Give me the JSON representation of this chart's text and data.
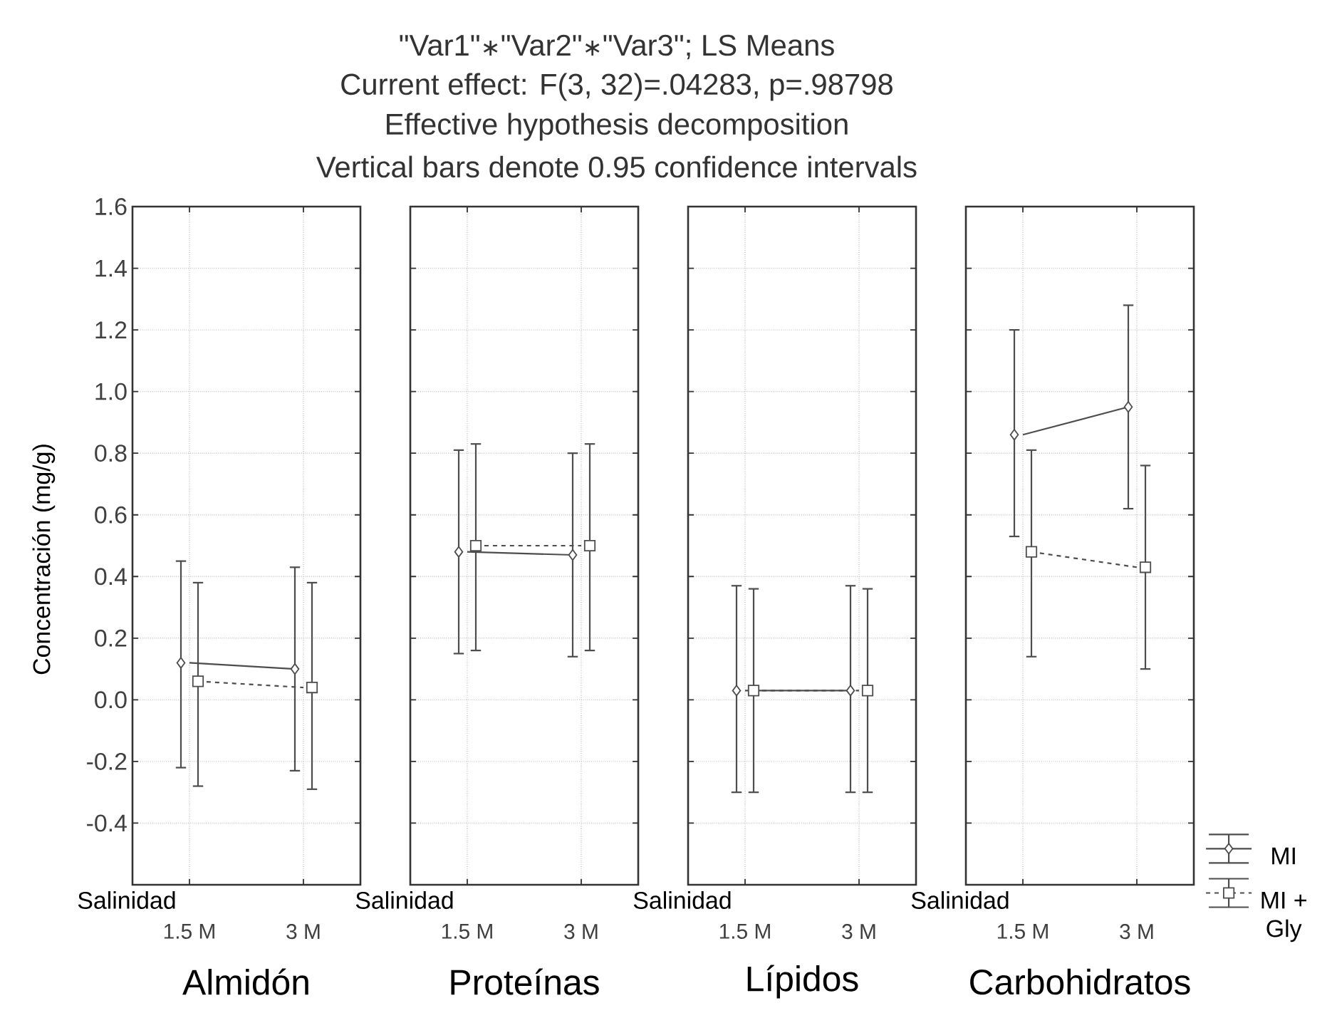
{
  "chart_data": [
    {
      "type": "line",
      "title": "Almidón",
      "xlabel": "Salinidad",
      "ylabel": "Concentración (mg/g)",
      "annotations": [
        "\"Var1\"∗\"Var2\"∗\"Var3\"; LS Means",
        "Current effect: F(3, 32)=.04283, p=.98798",
        "Effective hypothesis decomposition",
        "Vertical bars denote 0.95 confidence intervals"
      ],
      "categories": [
        "1.5 M",
        "3 M"
      ],
      "ylim": [
        -0.6,
        1.6
      ],
      "yticks": [
        -0.4,
        -0.2,
        {
          "value": 0,
          "label": "0.0"
        },
        0.2,
        0.4,
        0.6,
        0.8,
        {
          "value": 1,
          "label": "1.0"
        },
        1.2,
        1.4,
        1.6
      ],
      "grid": true,
      "series": [
        {
          "color": "#4d4d4d",
          "marker": "diamond",
          "line_style": "solid",
          "values": [
            0.12,
            0.1
          ],
          "errors": [
            [
              -0.22,
              0.45
            ],
            [
              -0.23,
              0.43
            ]
          ]
        },
        {
          "color": "#4d4d4d",
          "marker": "square",
          "line_style": "dashed",
          "values": [
            0.06,
            0.04
          ],
          "errors": [
            [
              -0.28,
              0.38
            ],
            [
              -0.29,
              0.38
            ]
          ]
        }
      ]
    },
    {
      "type": "line",
      "title": "Proteínas",
      "xlabel": "Salinidad",
      "categories": [
        "1.5 M",
        "3 M"
      ],
      "ylim": [
        -0.6,
        1.6
      ],
      "yticks": [
        -0.4,
        -0.2,
        0,
        0.2,
        0.4,
        0.6,
        0.8,
        1,
        1.2,
        1.4,
        1.6
      ],
      "grid": true,
      "tick_labels": "x",
      "series": [
        {
          "color": "#4d4d4d",
          "marker": "diamond",
          "line_style": "solid",
          "values": [
            0.48,
            0.47
          ],
          "errors": [
            [
              0.15,
              0.81
            ],
            [
              0.14,
              0.8
            ]
          ]
        },
        {
          "color": "#4d4d4d",
          "marker": "square",
          "line_style": "dashed",
          "values": [
            0.5,
            0.5
          ],
          "errors": [
            [
              0.16,
              0.83
            ],
            [
              0.16,
              0.83
            ]
          ]
        }
      ]
    },
    {
      "type": "line",
      "title": "Lípidos",
      "xlabel": "Salinidad",
      "categories": [
        "1.5 M",
        "3 M"
      ],
      "ylim": [
        -0.6,
        1.6
      ],
      "yticks": [
        -0.4,
        -0.2,
        0,
        0.2,
        0.4,
        0.6,
        0.8,
        1,
        1.2,
        1.4,
        1.6
      ],
      "grid": true,
      "tick_labels": "x",
      "series": [
        {
          "color": "#4d4d4d",
          "marker": "diamond",
          "line_style": "solid",
          "values": [
            0.03,
            0.03
          ],
          "errors": [
            [
              -0.3,
              0.37
            ],
            [
              -0.3,
              0.37
            ]
          ]
        },
        {
          "color": "#4d4d4d",
          "marker": "square",
          "line_style": "dashed",
          "values": [
            0.03,
            0.03
          ],
          "errors": [
            [
              -0.3,
              0.36
            ],
            [
              -0.3,
              0.36
            ]
          ]
        }
      ]
    },
    {
      "type": "line",
      "title": "Carbohidratos",
      "xlabel": "Salinidad",
      "categories": [
        "1.5 M",
        "3 M"
      ],
      "ylim": [
        -0.6,
        1.6
      ],
      "yticks": [
        -0.4,
        -0.2,
        0,
        0.2,
        0.4,
        0.6,
        0.8,
        1,
        1.2,
        1.4,
        1.6
      ],
      "grid": true,
      "tick_labels": "x",
      "legend": "bottom right",
      "series": [
        {
          "name": "MI",
          "color": "#4d4d4d",
          "marker": "diamond",
          "line_style": "solid",
          "values": [
            0.86,
            0.95
          ],
          "errors": [
            [
              0.53,
              1.2
            ],
            [
              0.62,
              1.28
            ]
          ]
        },
        {
          "name": "MI + Gly",
          "color": "#4d4d4d",
          "marker": "square",
          "line_style": "dashed",
          "values": [
            0.48,
            0.43
          ],
          "errors": [
            [
              0.14,
              0.81
            ],
            [
              0.1,
              0.76
            ]
          ]
        }
      ]
    }
  ]
}
